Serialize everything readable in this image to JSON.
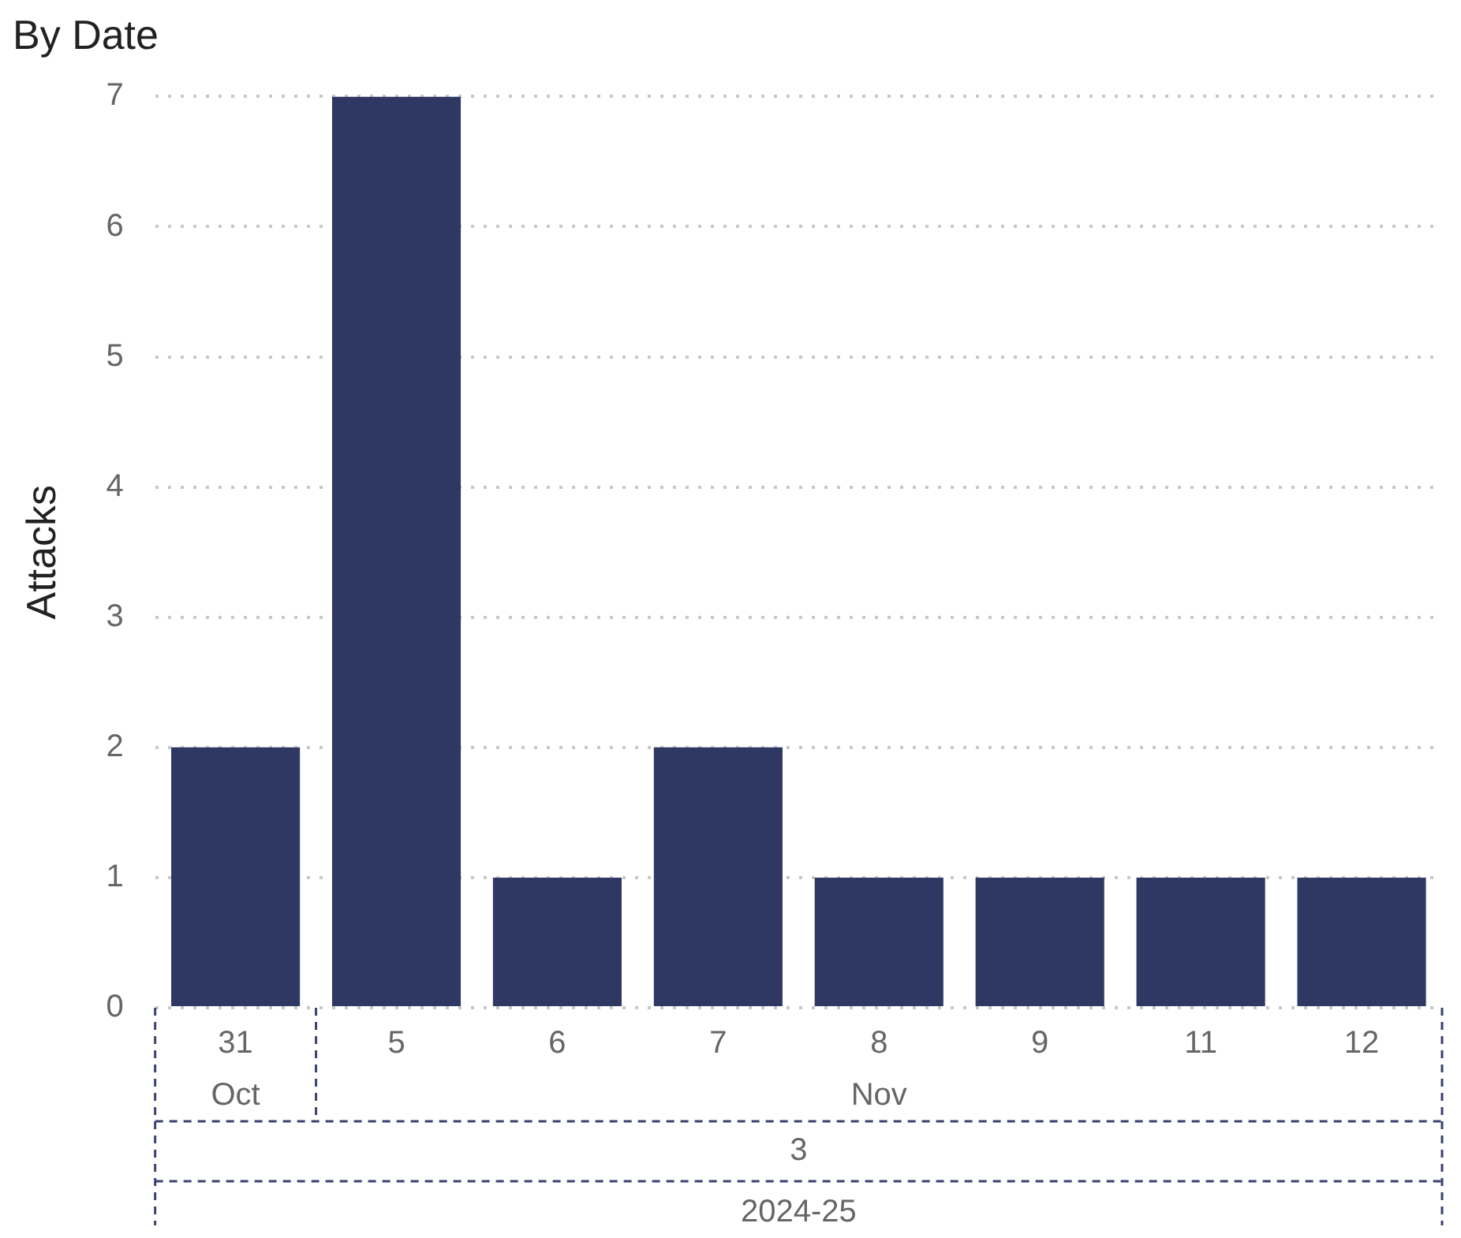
{
  "chart_data": {
    "type": "bar",
    "title": "By Date",
    "ylabel": "Attacks",
    "categories": [
      "31",
      "5",
      "6",
      "7",
      "8",
      "9",
      "11",
      "12"
    ],
    "values": [
      2,
      7,
      1,
      2,
      1,
      1,
      1,
      1
    ],
    "color": "#2e3862",
    "ylim": [
      0,
      7
    ],
    "yticks": [
      0,
      1,
      2,
      3,
      4,
      5,
      6,
      7
    ],
    "grid": "y",
    "legend": false,
    "annotations": [
      "Oct",
      "Nov",
      "3",
      "2024-25"
    ]
  }
}
